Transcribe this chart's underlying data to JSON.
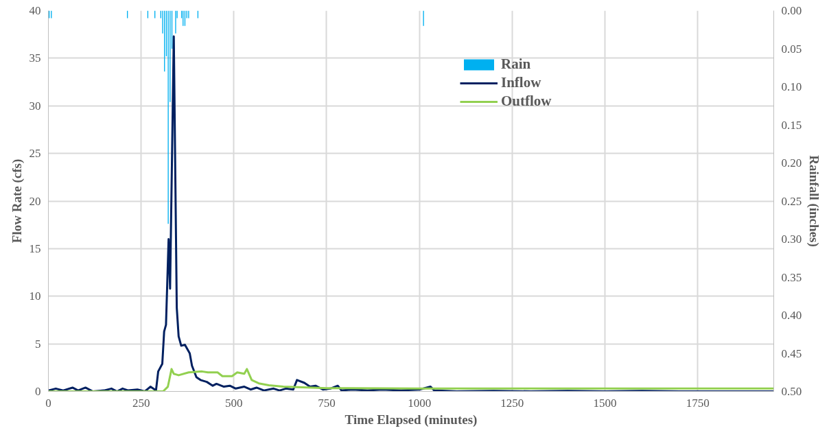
{
  "chart_data": {
    "type": "line",
    "xlabel": "Time Elapsed (minutes)",
    "ylabel": "Flow Rate (cfs)",
    "y2label": "Rainfall (inches)",
    "xlim": [
      0,
      1955
    ],
    "xticks": [
      0,
      250,
      500,
      750,
      1000,
      1250,
      1500,
      1750
    ],
    "ylim": [
      0,
      40
    ],
    "yticks": [
      0,
      5,
      10,
      15,
      20,
      25,
      30,
      35,
      40
    ],
    "y2lim": [
      0.5,
      0
    ],
    "y2ticks": [
      {
        "value": 0,
        "label": "0.00"
      },
      {
        "value": 0.05,
        "label": "0.05"
      },
      {
        "value": 0.1,
        "label": "0.10"
      },
      {
        "value": 0.15,
        "label": "0.15"
      },
      {
        "value": 0.2,
        "label": "0.20"
      },
      {
        "value": 0.25,
        "label": "0.25"
      },
      {
        "value": 0.3,
        "label": "0.30"
      },
      {
        "value": 0.35,
        "label": "0.35"
      },
      {
        "value": 0.4,
        "label": "0.40"
      },
      {
        "value": 0.45,
        "label": "0.45"
      },
      {
        "value": 0.5,
        "label": "0.50"
      }
    ],
    "grid": true,
    "legend": "top right",
    "marker": "none",
    "line_style": "solid",
    "series": [
      {
        "name": "Rain",
        "type": "bar",
        "axis": "y2",
        "color": "#00b0f0",
        "x": [
          2,
          8,
          213,
          268,
          287,
          303,
          308,
          313,
          318,
          323,
          328,
          333,
          343,
          347,
          359,
          363,
          368,
          373,
          378,
          403,
          1011
        ],
        "values": [
          0.01,
          0.01,
          0.01,
          0.01,
          0.01,
          0.01,
          0.03,
          0.08,
          0.06,
          0.28,
          0.12,
          0.05,
          0.03,
          0.01,
          0.01,
          0.02,
          0.02,
          0.01,
          0.01,
          0.01,
          0.02
        ]
      },
      {
        "name": "Inflow",
        "color": "#002060",
        "x": [
          0,
          20,
          40,
          65,
          80,
          100,
          120,
          150,
          170,
          185,
          200,
          215,
          240,
          260,
          275,
          290,
          296,
          307,
          312,
          317,
          324,
          328,
          338,
          346,
          351,
          358,
          368,
          381,
          387,
          399,
          410,
          427,
          443,
          453,
          473,
          489,
          505,
          528,
          545,
          561,
          581,
          607,
          623,
          640,
          660,
          670,
          690,
          705,
          720,
          740,
          760,
          780,
          790,
          820,
          860,
          900,
          950,
          1000,
          1030,
          1040,
          1100,
          1200,
          1300,
          1400,
          1500,
          1600,
          1700,
          1800,
          1900,
          1955
        ],
        "values": [
          0.1,
          0.3,
          0.1,
          0.4,
          0.1,
          0.4,
          0.0,
          0.1,
          0.3,
          0.0,
          0.3,
          0.1,
          0.2,
          0.0,
          0.5,
          0.1,
          2.1,
          2.9,
          6.3,
          7.0,
          16.0,
          10.8,
          37.3,
          8.8,
          5.8,
          4.8,
          4.9,
          4.0,
          2.7,
          1.5,
          1.2,
          1.0,
          0.6,
          0.8,
          0.5,
          0.6,
          0.3,
          0.5,
          0.2,
          0.4,
          0.1,
          0.3,
          0.1,
          0.3,
          0.2,
          1.2,
          0.9,
          0.5,
          0.6,
          0.2,
          0.3,
          0.6,
          0.1,
          0.2,
          0.1,
          0.2,
          0.1,
          0.2,
          0.5,
          0.1,
          0.0,
          0.05,
          0.0,
          0.05,
          0.0,
          0.05,
          0.0,
          0.0,
          0.0,
          0.0
        ]
      },
      {
        "name": "Outflow",
        "color": "#92d050",
        "x": [
          0,
          100,
          200,
          309,
          322,
          332,
          338,
          351,
          378,
          414,
          430,
          456,
          469,
          495,
          509,
          528,
          535,
          548,
          567,
          594,
          633,
          750,
          1000,
          1250,
          1500,
          1750,
          1955
        ],
        "values": [
          0.0,
          0.0,
          0.0,
          0.0,
          0.5,
          2.35,
          1.85,
          1.7,
          2.0,
          2.1,
          2.0,
          2.0,
          1.6,
          1.6,
          2.0,
          1.85,
          2.35,
          1.2,
          0.85,
          0.65,
          0.5,
          0.35,
          0.3,
          0.3,
          0.3,
          0.3,
          0.3
        ]
      }
    ]
  }
}
